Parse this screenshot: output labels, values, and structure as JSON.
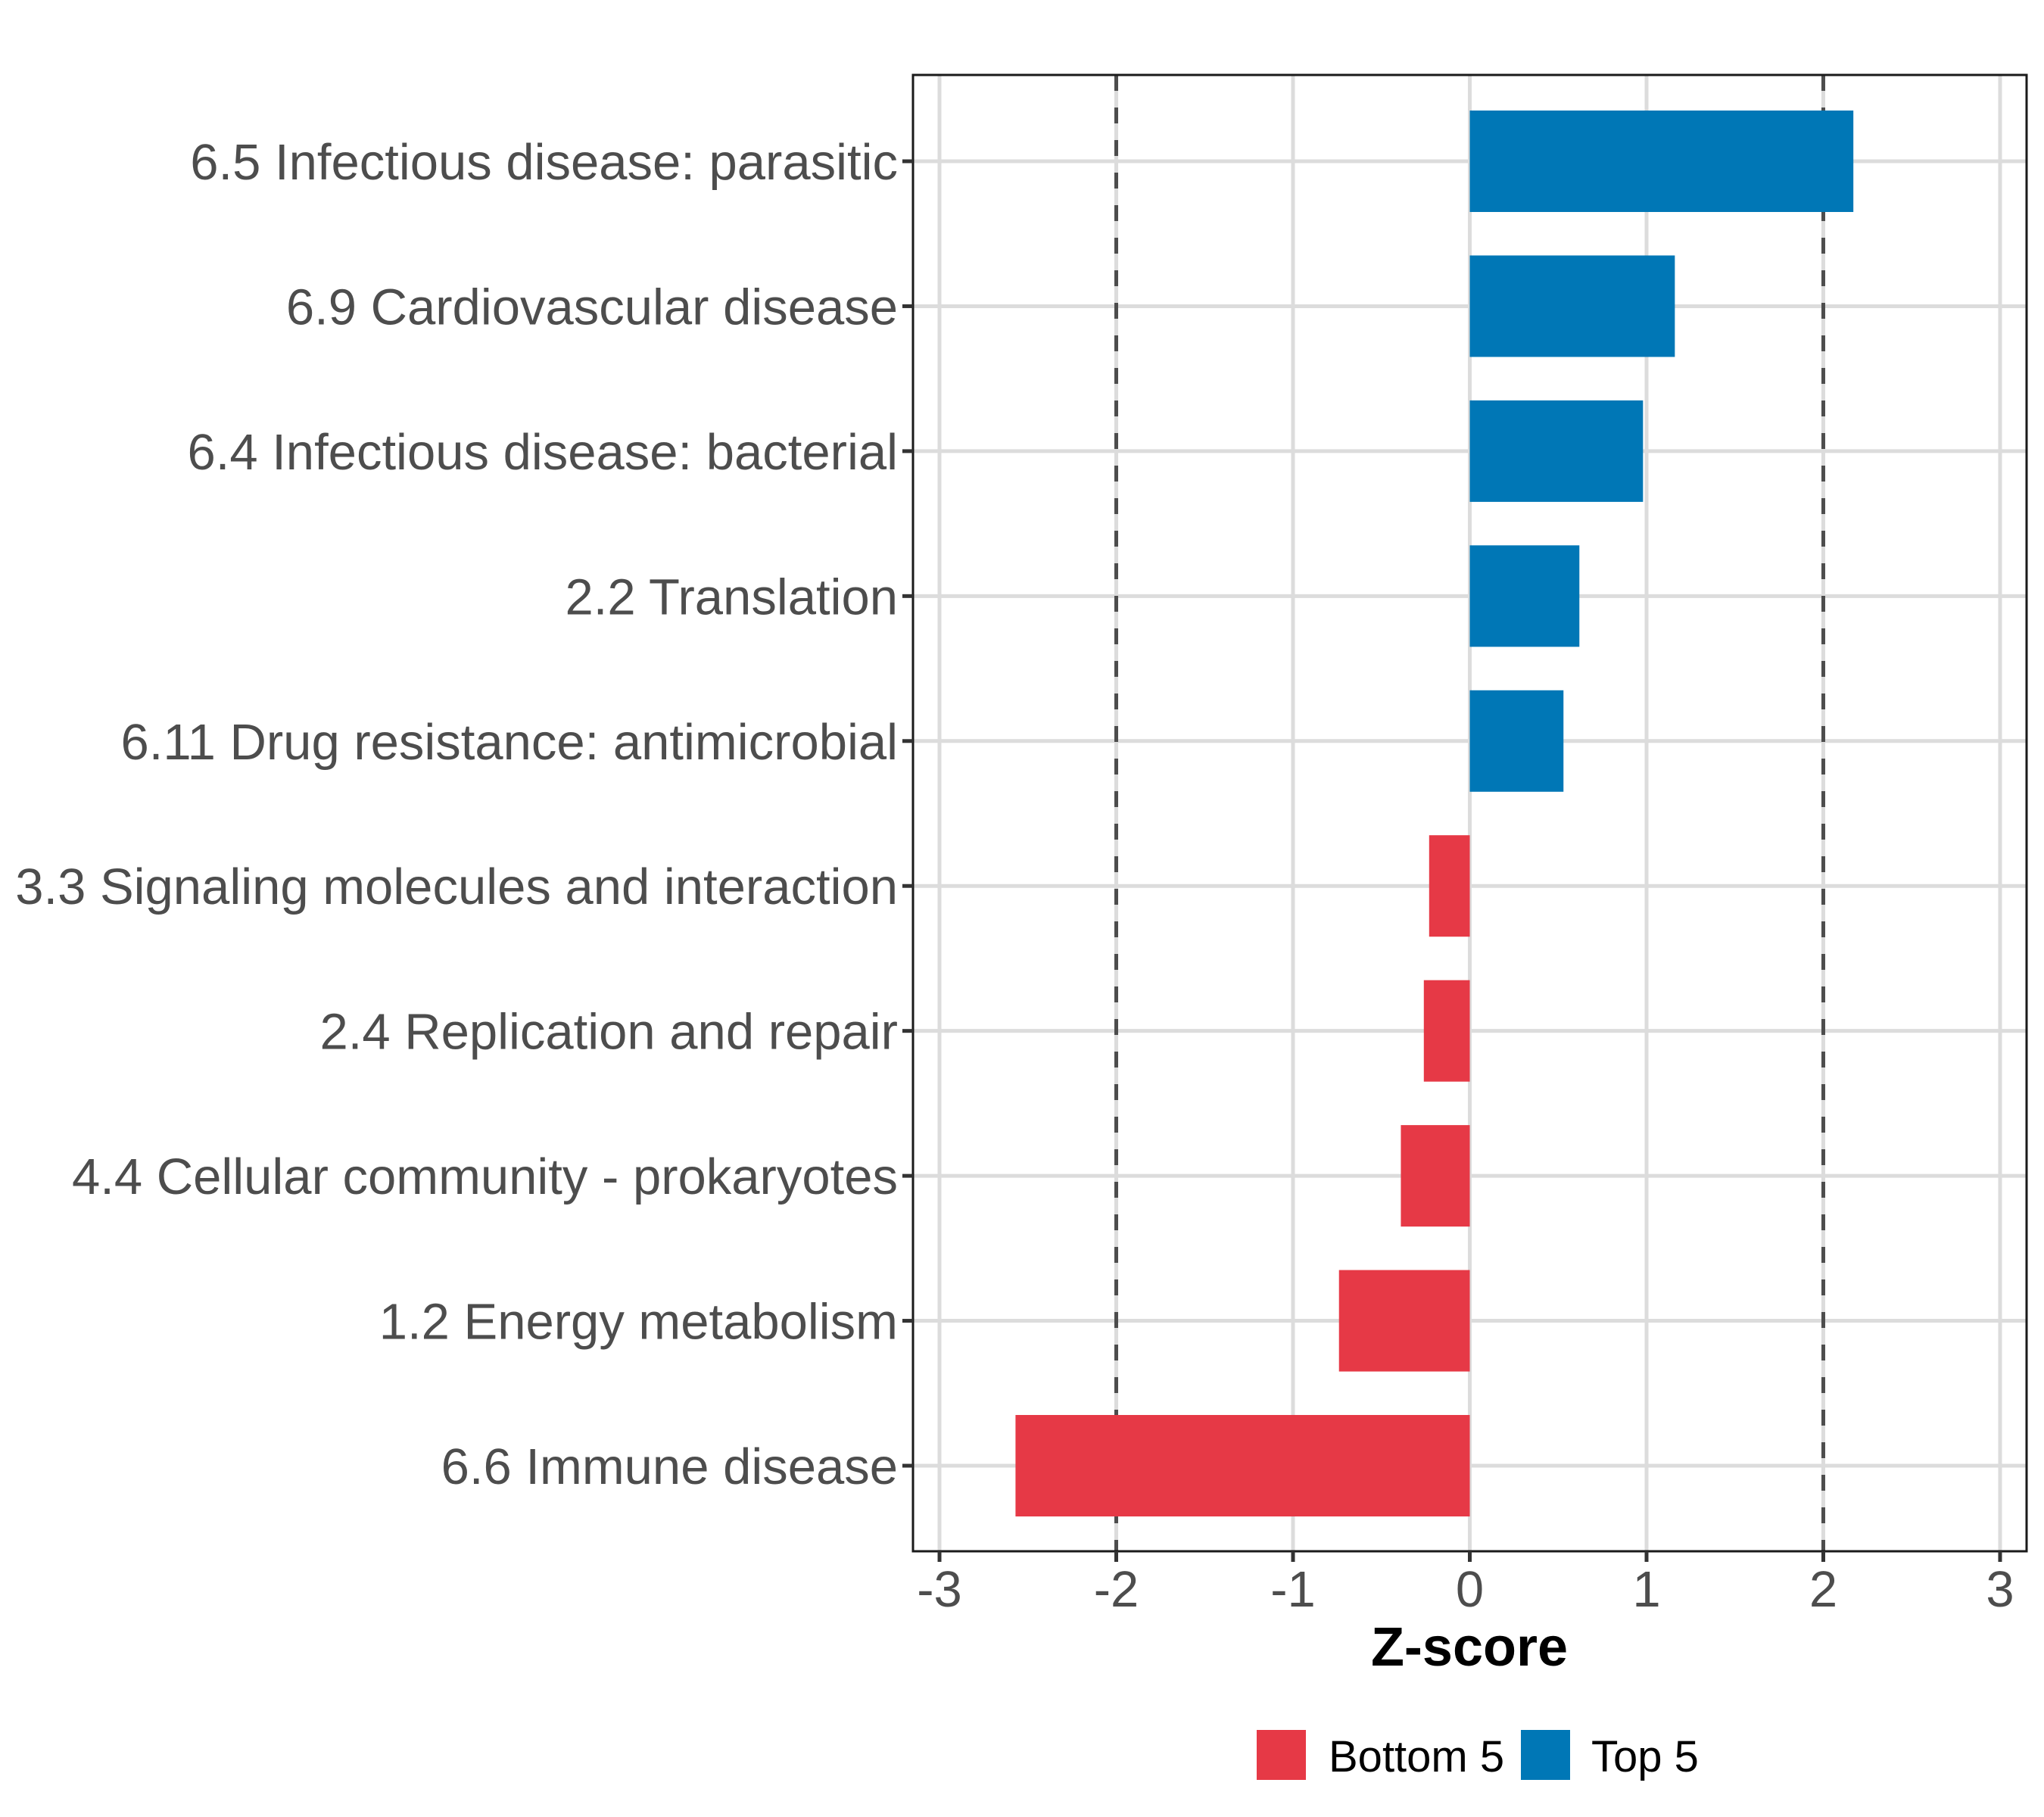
{
  "chart_data": {
    "type": "bar",
    "orientation": "horizontal",
    "title": "",
    "xlabel": "Z-score",
    "ylabel": "",
    "xlim": [
      -3.15,
      3.15
    ],
    "xticks": [
      -3,
      -2,
      -1,
      0,
      1,
      2,
      3
    ],
    "xtick_labels": [
      "-3",
      "-2",
      "-1",
      "0",
      "1",
      "2",
      "3"
    ],
    "grid": true,
    "reference_lines": [
      -2,
      2
    ],
    "categories": [
      "6.5 Infectious disease: parasitic",
      "6.9 Cardiovascular disease",
      "6.4 Infectious disease: bacterial",
      "2.2 Translation",
      "6.11 Drug resistance: antimicrobial",
      "3.3 Signaling molecules and interaction",
      "2.4 Replication and repair",
      "4.4 Cellular community - prokaryotes",
      "1.2 Energy metabolism",
      "6.6 Immune disease"
    ],
    "values": [
      2.17,
      1.16,
      0.98,
      0.62,
      0.53,
      -0.23,
      -0.26,
      -0.39,
      -0.74,
      -2.57
    ],
    "groups": [
      "Top 5",
      "Top 5",
      "Top 5",
      "Top 5",
      "Top 5",
      "Bottom 5",
      "Bottom 5",
      "Bottom 5",
      "Bottom 5",
      "Bottom 5"
    ],
    "legend": {
      "position": "bottom",
      "entries": [
        {
          "label": "Bottom 5",
          "color": "#e63946"
        },
        {
          "label": "Top 5",
          "color": "#0077b6"
        }
      ]
    },
    "colors": {
      "Top 5": "#0077b6",
      "Bottom 5": "#e63946"
    }
  }
}
